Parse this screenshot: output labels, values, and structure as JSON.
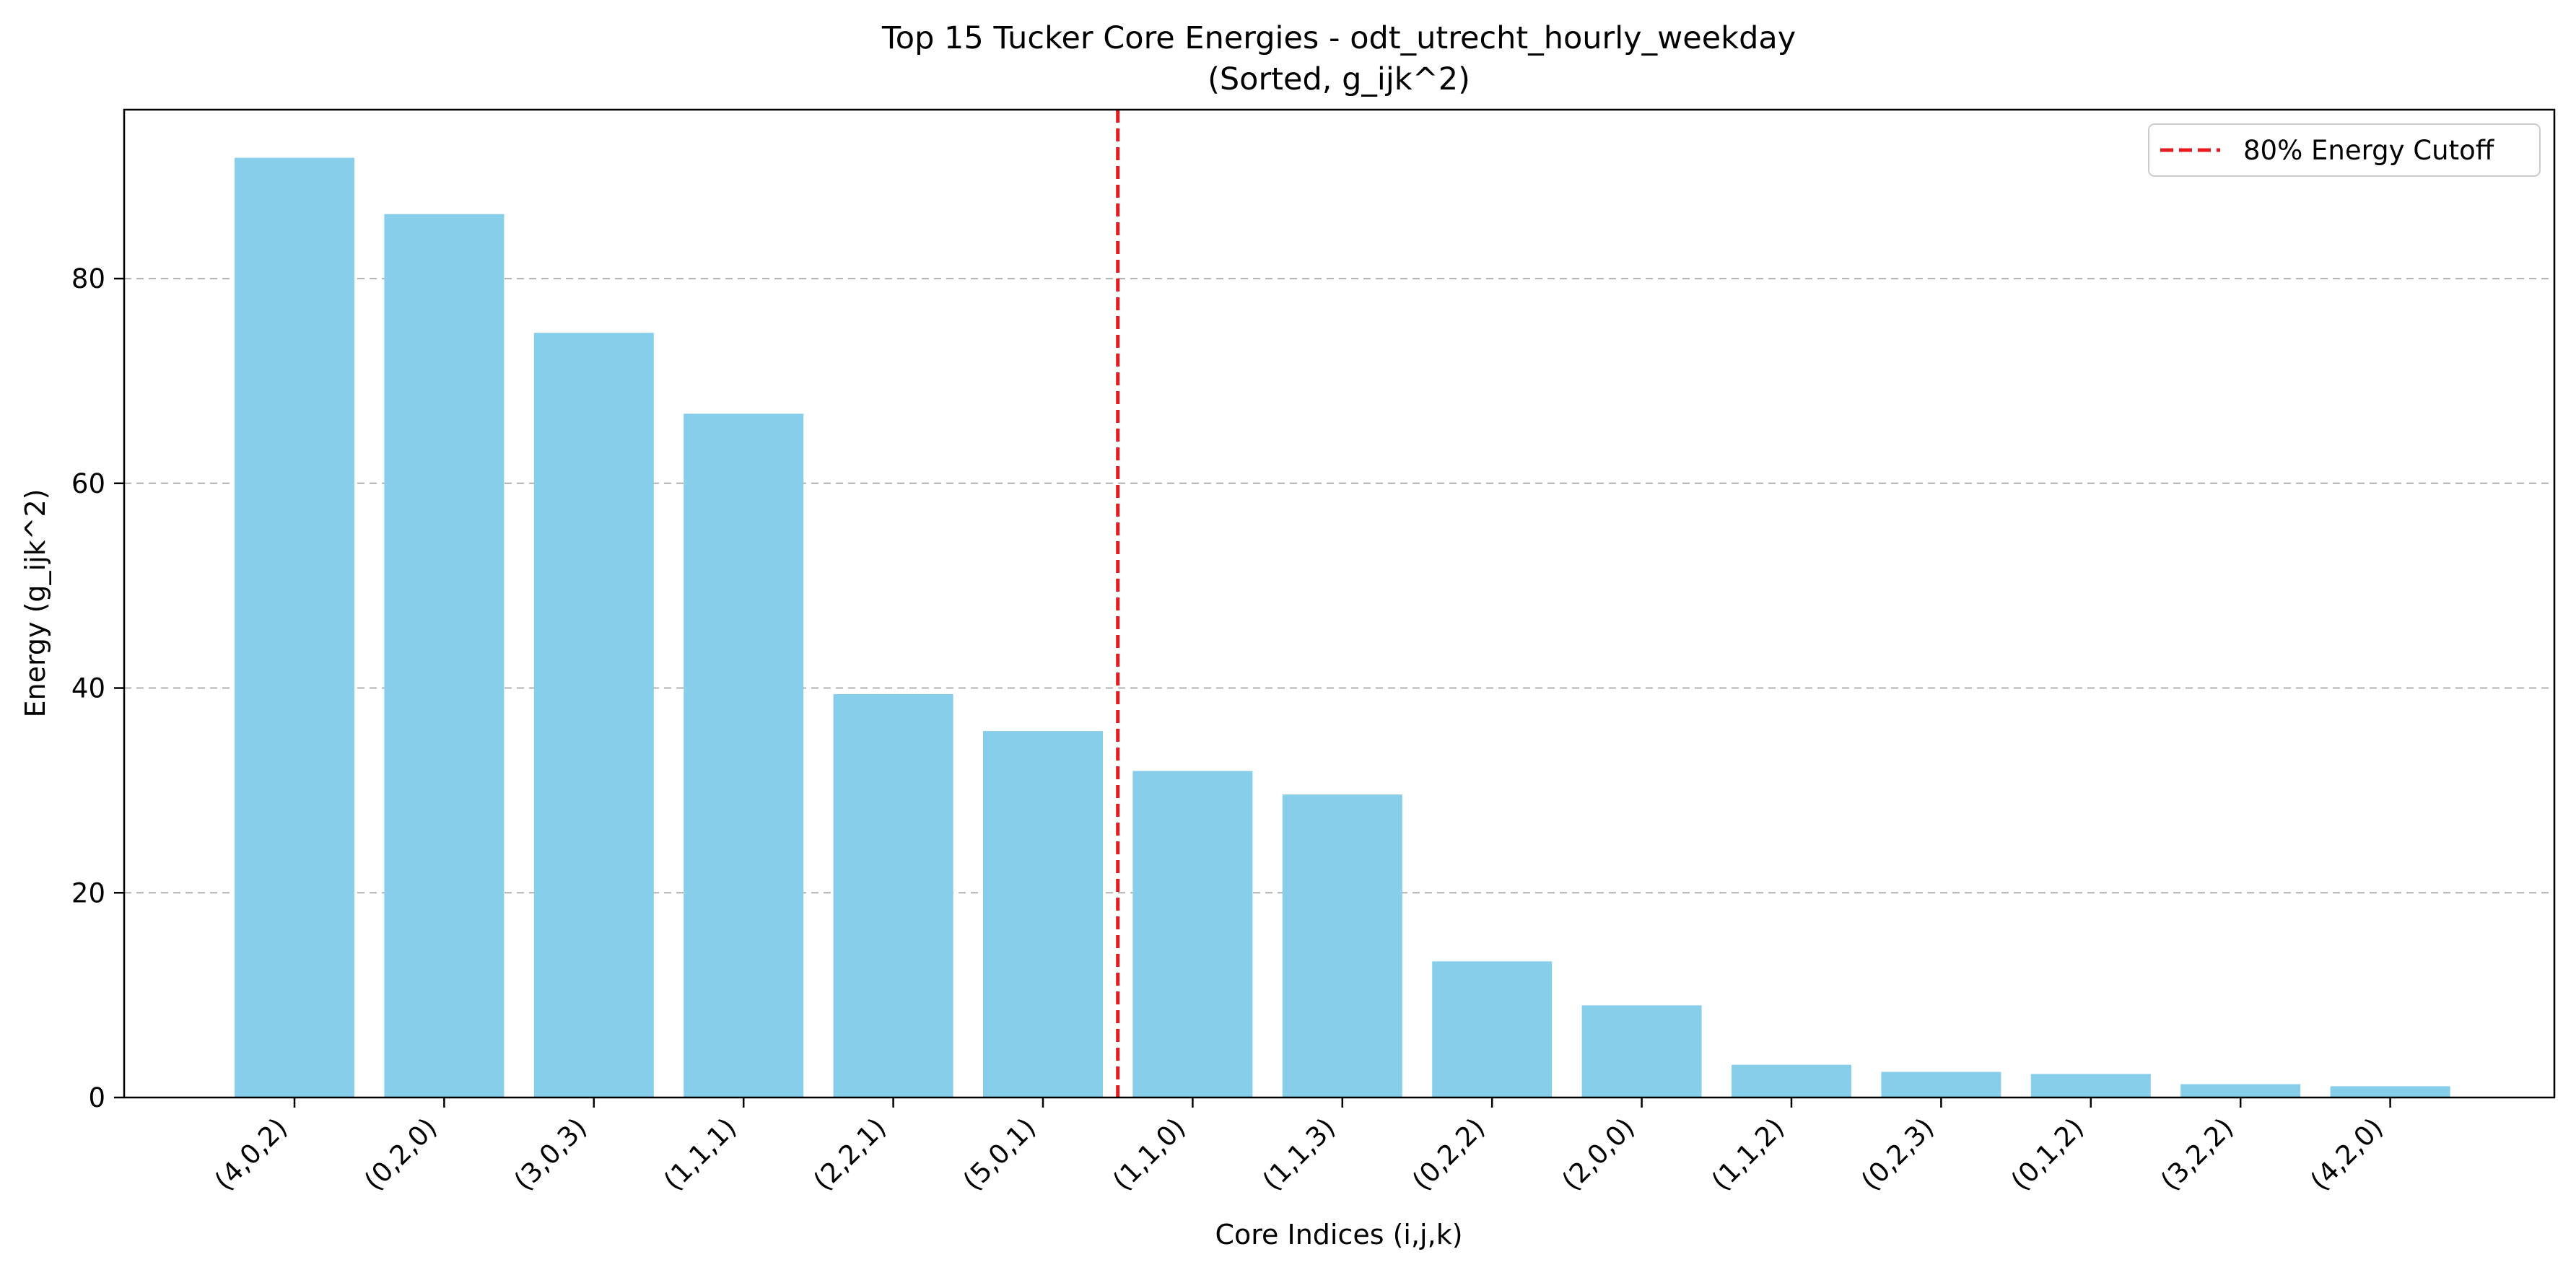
{
  "chart_data": {
    "type": "bar",
    "title_line1": "Top 15 Tucker Core Energies - odt_utrecht_hourly_weekday",
    "title_line2": "(Sorted, g_ijk^2)",
    "xlabel": "Core Indices (i,j,k)",
    "ylabel": "Energy (g_ijk^2)",
    "categories": [
      "(4,0,2)",
      "(0,2,0)",
      "(3,0,3)",
      "(1,1,1)",
      "(2,2,1)",
      "(5,0,1)",
      "(1,1,0)",
      "(1,1,3)",
      "(0,2,2)",
      "(2,0,0)",
      "(1,1,2)",
      "(0,2,3)",
      "(0,1,2)",
      "(3,2,2)",
      "(4,2,0)"
    ],
    "values": [
      91.8,
      86.3,
      74.7,
      66.8,
      39.4,
      35.8,
      31.9,
      29.6,
      13.3,
      9.0,
      3.2,
      2.5,
      2.3,
      1.3,
      1.1
    ],
    "ylim": [
      0,
      96.5
    ],
    "yticks": [
      0,
      20,
      40,
      60,
      80
    ],
    "bar_color": "#87CEEB",
    "grid": "y-dashed",
    "cutoff": {
      "label": "80% Energy Cutoff",
      "position_between": [
        5,
        6
      ],
      "color": "#e41a1c"
    },
    "legend_position": "top-right"
  }
}
